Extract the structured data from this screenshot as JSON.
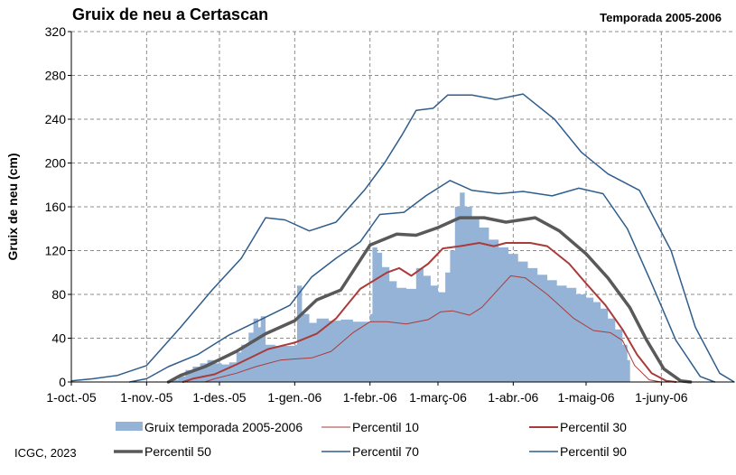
{
  "chart_data": {
    "type": "bar+line",
    "title": "Gruix de neu a Certascan",
    "subtitle": "Temporada 2005-2006",
    "ylabel": "Gruix de neu (cm)",
    "xlabel": "",
    "ylim": [
      0,
      320
    ],
    "yticks": [
      0,
      40,
      80,
      120,
      160,
      200,
      240,
      280,
      320
    ],
    "x_start": "2005-10-01",
    "x_end": "2006-07-01",
    "xticks": [
      {
        "date": "2005-10-01",
        "label": "1-oct.-05"
      },
      {
        "date": "2005-11-01",
        "label": "1-nov.-05"
      },
      {
        "date": "2005-12-01",
        "label": "1-des.-05"
      },
      {
        "date": "2006-01-01",
        "label": "1-gen.-06"
      },
      {
        "date": "2006-02-01",
        "label": "1-febr.-06"
      },
      {
        "date": "2006-03-01",
        "label": "1-març-06"
      },
      {
        "date": "2006-04-01",
        "label": "1-abr.-06"
      },
      {
        "date": "2006-05-01",
        "label": "1-maig-06"
      },
      {
        "date": "2006-06-01",
        "label": "1-juny-06"
      }
    ],
    "grid": true,
    "legend_position": "bottom",
    "credit": "ICGC, 2023",
    "bars": {
      "name": "Gruix temporada 2005-2006",
      "color": "#95B3D7",
      "points": [
        [
          "2005-11-11",
          2
        ],
        [
          "2005-11-14",
          5
        ],
        [
          "2005-11-17",
          11
        ],
        [
          "2005-11-20",
          14
        ],
        [
          "2005-11-23",
          17
        ],
        [
          "2005-11-26",
          20
        ],
        [
          "2005-11-29",
          17
        ],
        [
          "2005-12-02",
          16
        ],
        [
          "2005-12-05",
          18
        ],
        [
          "2005-12-08",
          27
        ],
        [
          "2005-12-10",
          34
        ],
        [
          "2005-12-13",
          45
        ],
        [
          "2005-12-15",
          58
        ],
        [
          "2005-12-17",
          50
        ],
        [
          "2005-12-18",
          60
        ],
        [
          "2005-12-20",
          34
        ],
        [
          "2005-12-24",
          33
        ],
        [
          "2005-12-28",
          33
        ],
        [
          "2006-01-01",
          34
        ],
        [
          "2006-01-02",
          88
        ],
        [
          "2006-01-04",
          62
        ],
        [
          "2006-01-07",
          54
        ],
        [
          "2006-01-10",
          58
        ],
        [
          "2006-01-15",
          56
        ],
        [
          "2006-01-20",
          57
        ],
        [
          "2006-01-25",
          55
        ],
        [
          "2006-01-31",
          55
        ],
        [
          "2006-02-01",
          62
        ],
        [
          "2006-02-02",
          123
        ],
        [
          "2006-02-04",
          118
        ],
        [
          "2006-02-06",
          105
        ],
        [
          "2006-02-09",
          92
        ],
        [
          "2006-02-12",
          86
        ],
        [
          "2006-02-16",
          85
        ],
        [
          "2006-02-20",
          104
        ],
        [
          "2006-02-23",
          97
        ],
        [
          "2006-02-26",
          88
        ],
        [
          "2006-03-01",
          82
        ],
        [
          "2006-03-04",
          100
        ],
        [
          "2006-03-06",
          120
        ],
        [
          "2006-03-08",
          160
        ],
        [
          "2006-03-10",
          173
        ],
        [
          "2006-03-12",
          160
        ],
        [
          "2006-03-15",
          150
        ],
        [
          "2006-03-18",
          141
        ],
        [
          "2006-03-22",
          130
        ],
        [
          "2006-03-26",
          123
        ],
        [
          "2006-03-30",
          117
        ],
        [
          "2006-04-03",
          110
        ],
        [
          "2006-04-07",
          104
        ],
        [
          "2006-04-11",
          98
        ],
        [
          "2006-04-15",
          93
        ],
        [
          "2006-04-19",
          88
        ],
        [
          "2006-04-23",
          86
        ],
        [
          "2006-04-27",
          80
        ],
        [
          "2006-05-01",
          77
        ],
        [
          "2006-05-04",
          73
        ],
        [
          "2006-05-07",
          67
        ],
        [
          "2006-05-10",
          58
        ],
        [
          "2006-05-13",
          48
        ],
        [
          "2006-05-16",
          34
        ],
        [
          "2006-05-18",
          20
        ]
      ]
    },
    "series": [
      {
        "name": "Percentil 10",
        "color": "#A93B39",
        "width": 1,
        "points": [
          [
            "2005-11-25",
            0
          ],
          [
            "2005-11-29",
            3
          ],
          [
            "2005-12-08",
            8
          ],
          [
            "2005-12-16",
            14
          ],
          [
            "2005-12-26",
            20
          ],
          [
            "2006-01-01",
            21
          ],
          [
            "2006-01-08",
            22
          ],
          [
            "2006-01-16",
            28
          ],
          [
            "2006-01-25",
            45
          ],
          [
            "2006-02-01",
            55
          ],
          [
            "2006-02-08",
            55
          ],
          [
            "2006-02-16",
            53
          ],
          [
            "2006-02-25",
            57
          ],
          [
            "2006-03-02",
            64
          ],
          [
            "2006-03-07",
            65
          ],
          [
            "2006-03-14",
            61
          ],
          [
            "2006-03-19",
            68
          ],
          [
            "2006-03-26",
            85
          ],
          [
            "2006-03-31",
            97
          ],
          [
            "2006-04-06",
            95
          ],
          [
            "2006-04-15",
            80
          ],
          [
            "2006-04-26",
            58
          ],
          [
            "2006-05-04",
            47
          ],
          [
            "2006-05-11",
            45
          ],
          [
            "2006-05-16",
            38
          ],
          [
            "2006-05-21",
            15
          ],
          [
            "2006-05-27",
            2
          ],
          [
            "2006-06-01",
            0
          ]
        ]
      },
      {
        "name": "Percentil 30",
        "color": "#A93B39",
        "width": 2,
        "points": [
          [
            "2005-11-16",
            0
          ],
          [
            "2005-11-20",
            3
          ],
          [
            "2005-11-29",
            7
          ],
          [
            "2005-12-08",
            16
          ],
          [
            "2005-12-21",
            30
          ],
          [
            "2006-01-01",
            36
          ],
          [
            "2006-01-10",
            44
          ],
          [
            "2006-01-18",
            58
          ],
          [
            "2006-01-28",
            85
          ],
          [
            "2006-02-08",
            100
          ],
          [
            "2006-02-13",
            104
          ],
          [
            "2006-02-18",
            97
          ],
          [
            "2006-02-25",
            108
          ],
          [
            "2006-03-03",
            122
          ],
          [
            "2006-03-10",
            124
          ],
          [
            "2006-03-18",
            127
          ],
          [
            "2006-03-24",
            124
          ],
          [
            "2006-03-29",
            127
          ],
          [
            "2006-04-08",
            127
          ],
          [
            "2006-04-15",
            124
          ],
          [
            "2006-04-24",
            108
          ],
          [
            "2006-05-01",
            90
          ],
          [
            "2006-05-09",
            70
          ],
          [
            "2006-05-16",
            48
          ],
          [
            "2006-05-22",
            25
          ],
          [
            "2006-05-28",
            8
          ],
          [
            "2006-06-03",
            1
          ],
          [
            "2006-06-07",
            0
          ]
        ]
      },
      {
        "name": "Percentil 50",
        "color": "#595959",
        "width": 3.5,
        "points": [
          [
            "2005-11-10",
            0
          ],
          [
            "2005-11-15",
            6
          ],
          [
            "2005-11-25",
            14
          ],
          [
            "2005-12-08",
            28
          ],
          [
            "2005-12-20",
            44
          ],
          [
            "2006-01-01",
            56
          ],
          [
            "2006-01-10",
            75
          ],
          [
            "2006-01-20",
            84
          ],
          [
            "2006-02-01",
            125
          ],
          [
            "2006-02-12",
            135
          ],
          [
            "2006-02-20",
            134
          ],
          [
            "2006-03-01",
            141
          ],
          [
            "2006-03-10",
            150
          ],
          [
            "2006-03-20",
            150
          ],
          [
            "2006-03-29",
            146
          ],
          [
            "2006-04-10",
            150
          ],
          [
            "2006-04-20",
            138
          ],
          [
            "2006-05-01",
            117
          ],
          [
            "2006-05-10",
            95
          ],
          [
            "2006-05-19",
            68
          ],
          [
            "2006-05-26",
            38
          ],
          [
            "2006-06-02",
            12
          ],
          [
            "2006-06-09",
            1
          ],
          [
            "2006-06-13",
            0
          ]
        ]
      },
      {
        "name": "Percentil 70",
        "color": "#2F5D8C",
        "width": 1.5,
        "points": [
          [
            "2005-10-25",
            0
          ],
          [
            "2005-11-01",
            3
          ],
          [
            "2005-11-10",
            14
          ],
          [
            "2005-11-22",
            25
          ],
          [
            "2005-12-05",
            43
          ],
          [
            "2005-12-18",
            57
          ],
          [
            "2005-12-30",
            70
          ],
          [
            "2006-01-08",
            96
          ],
          [
            "2006-01-18",
            113
          ],
          [
            "2006-01-28",
            128
          ],
          [
            "2006-02-05",
            153
          ],
          [
            "2006-02-15",
            155
          ],
          [
            "2006-02-24",
            170
          ],
          [
            "2006-03-06",
            184
          ],
          [
            "2006-03-15",
            175
          ],
          [
            "2006-03-26",
            172
          ],
          [
            "2006-04-05",
            174
          ],
          [
            "2006-04-17",
            170
          ],
          [
            "2006-04-28",
            177
          ],
          [
            "2006-05-08",
            172
          ],
          [
            "2006-05-18",
            140
          ],
          [
            "2006-05-28",
            90
          ],
          [
            "2006-06-07",
            38
          ],
          [
            "2006-06-17",
            5
          ],
          [
            "2006-06-23",
            0
          ]
        ]
      },
      {
        "name": "Percentil 90",
        "color": "#2F5D8C",
        "width": 1.5,
        "points": [
          [
            "2005-10-01",
            1
          ],
          [
            "2005-10-10",
            3
          ],
          [
            "2005-10-20",
            6
          ],
          [
            "2005-11-01",
            15
          ],
          [
            "2005-11-15",
            50
          ],
          [
            "2005-11-28",
            84
          ],
          [
            "2005-12-10",
            113
          ],
          [
            "2005-12-20",
            150
          ],
          [
            "2005-12-28",
            148
          ],
          [
            "2006-01-07",
            138
          ],
          [
            "2006-01-18",
            146
          ],
          [
            "2006-01-30",
            176
          ],
          [
            "2006-02-07",
            200
          ],
          [
            "2006-02-14",
            225
          ],
          [
            "2006-02-20",
            248
          ],
          [
            "2006-02-27",
            250
          ],
          [
            "2006-03-05",
            262
          ],
          [
            "2006-03-15",
            262
          ],
          [
            "2006-03-25",
            258
          ],
          [
            "2006-04-05",
            263
          ],
          [
            "2006-04-18",
            240
          ],
          [
            "2006-04-29",
            210
          ],
          [
            "2006-05-10",
            190
          ],
          [
            "2006-05-23",
            175
          ],
          [
            "2006-06-05",
            120
          ],
          [
            "2006-06-15",
            50
          ],
          [
            "2006-06-25",
            8
          ],
          [
            "2006-07-01",
            0
          ]
        ]
      }
    ]
  }
}
